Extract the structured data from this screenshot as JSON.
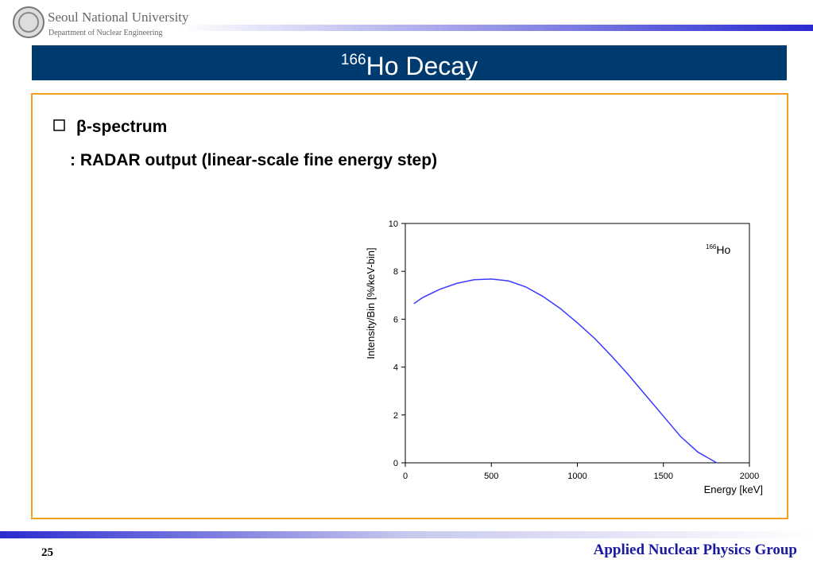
{
  "header": {
    "university": "Seoul National University",
    "department": "Department of Nuclear Engineering"
  },
  "title": {
    "superscript": "166",
    "text": "Ho  Decay"
  },
  "bullet": "β-spectrum",
  "subtitle": ": RADAR output  (linear-scale fine energy step)",
  "chart_data": {
    "type": "line",
    "x_label": "Energy [keV]",
    "y_label": "Intensity/Bin [%/keV-bin]",
    "annotation": {
      "superscript": "166",
      "text": "Ho"
    },
    "x": [
      50,
      100,
      200,
      300,
      400,
      500,
      600,
      700,
      800,
      900,
      1000,
      1100,
      1200,
      1300,
      1400,
      1500,
      1600,
      1700,
      1810
    ],
    "series": [
      {
        "color": "#3a3aff",
        "values": [
          6.65,
          6.9,
          7.25,
          7.5,
          7.65,
          7.68,
          7.6,
          7.35,
          6.95,
          6.45,
          5.85,
          5.2,
          4.45,
          3.65,
          2.8,
          1.95,
          1.1,
          0.45,
          0
        ]
      }
    ],
    "xlim": [
      0,
      2000
    ],
    "ylim": [
      0,
      10
    ],
    "xticks": [
      0,
      500,
      1000,
      1500,
      2000
    ],
    "yticks": [
      0,
      2,
      4,
      6,
      8,
      10
    ]
  },
  "footer": {
    "page": "25",
    "group": "Applied Nuclear Physics Group"
  }
}
